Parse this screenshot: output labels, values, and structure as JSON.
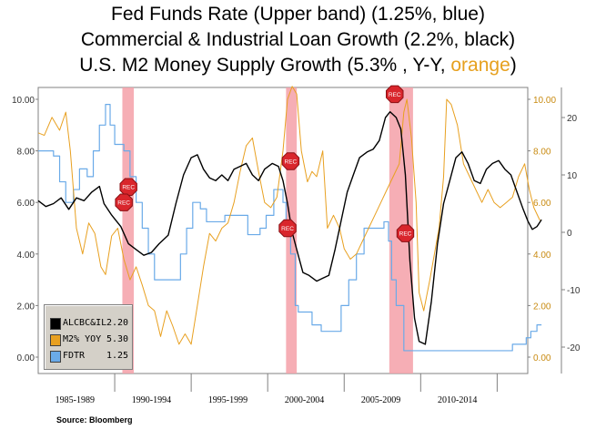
{
  "titles": {
    "line1": "Fed Funds Rate (Upper band) (1.25%, blue)",
    "line2": "Commercial & Industrial Loan Growth (2.2%, black)",
    "line3_prefix": "U.S. M2 Money Supply Growth (5.3% , Y-Y, ",
    "line3_highlight": "orange",
    "line3_suffix": ")"
  },
  "source": "Source:  Bloomberg",
  "colors": {
    "loan": "#000000",
    "m2": "#e8a020",
    "fed": "#6aaae8",
    "recession": "#f4a0a8",
    "axis_right1": "#c88a10"
  },
  "chart_data": {
    "type": "line",
    "x_labels": [
      "1985-1989",
      "1990-1994",
      "1995-1999",
      "2000-2004",
      "2005-2009",
      "2010-2014"
    ],
    "x_range": [
      1985.0,
      2017.0
    ],
    "left_axis": {
      "ticks": [
        "10.00",
        "8.00",
        "6.00",
        "4.00",
        "2.00",
        "0.00"
      ],
      "range": [
        0,
        10.5
      ]
    },
    "right_axis1": {
      "ticks": [
        "10.00",
        "8.00",
        "6.00",
        "4.00",
        "2.00",
        "0.00"
      ],
      "range": [
        0,
        10.5
      ]
    },
    "right_axis2": {
      "ticks": [
        "20",
        "10",
        "0",
        "-10",
        "-20"
      ],
      "range": [
        -22,
        24
      ]
    },
    "recessions": [
      [
        1990.5,
        1991.25
      ],
      [
        2001.2,
        2001.9
      ],
      [
        2007.95,
        2009.5
      ]
    ],
    "rec_markers": [
      {
        "label": "REC",
        "x": 1990.9,
        "y": 6.6
      },
      {
        "label": "REC",
        "x": 1990.6,
        "y": 6.0
      },
      {
        "label": "REC",
        "x": 2001.5,
        "y": 7.6
      },
      {
        "label": "REC",
        "x": 2001.3,
        "y": 5.0
      },
      {
        "label": "REC",
        "x": 2008.3,
        "y": 10.2
      },
      {
        "label": "REC",
        "x": 2009.0,
        "y": 4.8
      }
    ],
    "legend": [
      {
        "name": "ALCBC&IL",
        "value": "2.20",
        "color": "#000000"
      },
      {
        "name": "M2% YOY",
        "value": "5.30",
        "color": "#e8a020"
      },
      {
        "name": "FDTR",
        "value": "1.25",
        "color": "#6aaae8"
      }
    ],
    "series": [
      {
        "name": "FDTR",
        "axis": "left",
        "points": [
          [
            1985.0,
            8.0
          ],
          [
            1985.5,
            8.0
          ],
          [
            1986.0,
            7.8
          ],
          [
            1986.4,
            6.8
          ],
          [
            1986.8,
            6.0
          ],
          [
            1987.3,
            6.5
          ],
          [
            1987.7,
            7.3
          ],
          [
            1988.2,
            7.0
          ],
          [
            1988.6,
            8.0
          ],
          [
            1989.0,
            9.0
          ],
          [
            1989.4,
            9.8
          ],
          [
            1989.7,
            9.0
          ],
          [
            1990.0,
            8.25
          ],
          [
            1990.6,
            8.0
          ],
          [
            1991.0,
            7.0
          ],
          [
            1991.4,
            6.0
          ],
          [
            1991.8,
            5.0
          ],
          [
            1992.2,
            4.0
          ],
          [
            1992.6,
            3.0
          ],
          [
            1993.0,
            3.0
          ],
          [
            1994.0,
            3.0
          ],
          [
            1994.3,
            4.0
          ],
          [
            1994.7,
            5.0
          ],
          [
            1995.1,
            6.0
          ],
          [
            1995.6,
            5.75
          ],
          [
            1996.0,
            5.25
          ],
          [
            1997.2,
            5.5
          ],
          [
            1998.7,
            4.75
          ],
          [
            1999.5,
            5.0
          ],
          [
            1999.9,
            5.5
          ],
          [
            2000.4,
            6.5
          ],
          [
            2001.0,
            6.0
          ],
          [
            2001.2,
            5.0
          ],
          [
            2001.5,
            4.0
          ],
          [
            2001.8,
            2.0
          ],
          [
            2002.0,
            1.75
          ],
          [
            2002.9,
            1.25
          ],
          [
            2003.5,
            1.0
          ],
          [
            2004.5,
            1.0
          ],
          [
            2004.8,
            2.0
          ],
          [
            2005.3,
            3.0
          ],
          [
            2005.8,
            4.0
          ],
          [
            2006.3,
            5.0
          ],
          [
            2007.6,
            5.25
          ],
          [
            2007.9,
            4.5
          ],
          [
            2008.1,
            3.0
          ],
          [
            2008.4,
            2.0
          ],
          [
            2008.9,
            0.25
          ],
          [
            2015.9,
            0.25
          ],
          [
            2016.0,
            0.5
          ],
          [
            2016.9,
            0.75
          ],
          [
            2017.2,
            1.0
          ],
          [
            2017.6,
            1.25
          ],
          [
            2017.9,
            1.25
          ]
        ]
      },
      {
        "name": "ALCBC&IL",
        "axis": "right2",
        "points": [
          [
            1985.0,
            5.5
          ],
          [
            1985.5,
            4.5
          ],
          [
            1986.0,
            5.0
          ],
          [
            1986.5,
            6.0
          ],
          [
            1987.0,
            4.0
          ],
          [
            1987.5,
            6.0
          ],
          [
            1988.0,
            5.5
          ],
          [
            1988.5,
            7.0
          ],
          [
            1989.0,
            8.0
          ],
          [
            1989.3,
            5.0
          ],
          [
            1989.8,
            3.0
          ],
          [
            1990.4,
            1.0
          ],
          [
            1990.9,
            -2.0
          ],
          [
            1991.4,
            -3.0
          ],
          [
            1991.9,
            -4.0
          ],
          [
            1992.4,
            -3.5
          ],
          [
            1992.9,
            -2.0
          ],
          [
            1993.5,
            -0.5
          ],
          [
            1994.0,
            5.0
          ],
          [
            1994.5,
            10.0
          ],
          [
            1995.0,
            13.0
          ],
          [
            1995.4,
            13.5
          ],
          [
            1995.8,
            11.0
          ],
          [
            1996.2,
            9.5
          ],
          [
            1996.6,
            9.0
          ],
          [
            1997.0,
            10.0
          ],
          [
            1997.4,
            9.0
          ],
          [
            1997.8,
            11.0
          ],
          [
            1998.2,
            11.5
          ],
          [
            1998.6,
            12.0
          ],
          [
            1999.0,
            10.0
          ],
          [
            1999.4,
            9.0
          ],
          [
            1999.8,
            11.0
          ],
          [
            2000.3,
            12.0
          ],
          [
            2000.7,
            11.5
          ],
          [
            2001.0,
            9.0
          ],
          [
            2001.3,
            5.0
          ],
          [
            2001.6,
            0.0
          ],
          [
            2001.9,
            -3.0
          ],
          [
            2002.3,
            -7.0
          ],
          [
            2002.7,
            -7.5
          ],
          [
            2003.2,
            -8.5
          ],
          [
            2003.6,
            -8.0
          ],
          [
            2004.0,
            -7.5
          ],
          [
            2004.4,
            -3.0
          ],
          [
            2004.8,
            2.0
          ],
          [
            2005.2,
            7.0
          ],
          [
            2005.6,
            10.0
          ],
          [
            2006.0,
            13.0
          ],
          [
            2006.5,
            14.0
          ],
          [
            2006.9,
            14.5
          ],
          [
            2007.3,
            16.0
          ],
          [
            2007.7,
            20.0
          ],
          [
            2008.0,
            21.0
          ],
          [
            2008.4,
            20.0
          ],
          [
            2008.7,
            18.0
          ],
          [
            2009.0,
            10.0
          ],
          [
            2009.3,
            -5.0
          ],
          [
            2009.6,
            -15.0
          ],
          [
            2009.9,
            -19.0
          ],
          [
            2010.3,
            -19.5
          ],
          [
            2010.7,
            -12.0
          ],
          [
            2011.1,
            -2.0
          ],
          [
            2011.5,
            5.0
          ],
          [
            2011.9,
            9.0
          ],
          [
            2012.3,
            13.0
          ],
          [
            2012.7,
            14.0
          ],
          [
            2013.1,
            12.0
          ],
          [
            2013.5,
            9.0
          ],
          [
            2013.9,
            8.5
          ],
          [
            2014.3,
            11.0
          ],
          [
            2014.7,
            12.0
          ],
          [
            2015.1,
            12.5
          ],
          [
            2015.5,
            11.0
          ],
          [
            2015.9,
            10.0
          ],
          [
            2016.3,
            7.0
          ],
          [
            2016.7,
            4.0
          ],
          [
            2017.0,
            2.0
          ],
          [
            2017.3,
            0.5
          ],
          [
            2017.6,
            1.0
          ],
          [
            2017.9,
            2.2
          ]
        ]
      },
      {
        "name": "M2% YOY",
        "axis": "right1",
        "points": [
          [
            1985.0,
            8.7
          ],
          [
            1985.4,
            8.6
          ],
          [
            1985.9,
            9.3
          ],
          [
            1986.4,
            8.8
          ],
          [
            1986.8,
            9.5
          ],
          [
            1987.1,
            8.0
          ],
          [
            1987.5,
            5.0
          ],
          [
            1987.9,
            4.0
          ],
          [
            1988.3,
            5.2
          ],
          [
            1988.7,
            4.8
          ],
          [
            1989.1,
            3.5
          ],
          [
            1989.4,
            3.2
          ],
          [
            1989.8,
            4.7
          ],
          [
            1990.2,
            5.0
          ],
          [
            1990.6,
            3.8
          ],
          [
            1991.0,
            3.0
          ],
          [
            1991.4,
            3.5
          ],
          [
            1991.8,
            2.8
          ],
          [
            1992.2,
            2.0
          ],
          [
            1992.6,
            1.8
          ],
          [
            1993.0,
            0.8
          ],
          [
            1993.4,
            1.8
          ],
          [
            1993.8,
            1.2
          ],
          [
            1994.2,
            0.5
          ],
          [
            1994.6,
            0.9
          ],
          [
            1995.0,
            0.5
          ],
          [
            1995.4,
            2.0
          ],
          [
            1995.8,
            3.5
          ],
          [
            1996.2,
            4.8
          ],
          [
            1996.6,
            4.5
          ],
          [
            1997.0,
            5.0
          ],
          [
            1997.4,
            5.2
          ],
          [
            1997.8,
            6.0
          ],
          [
            1998.2,
            7.2
          ],
          [
            1998.6,
            8.2
          ],
          [
            1999.0,
            8.5
          ],
          [
            1999.4,
            7.2
          ],
          [
            1999.8,
            6.0
          ],
          [
            2000.2,
            5.8
          ],
          [
            2000.6,
            6.2
          ],
          [
            2001.0,
            8.0
          ],
          [
            2001.3,
            10.0
          ],
          [
            2001.6,
            10.5
          ],
          [
            2001.9,
            10.2
          ],
          [
            2002.2,
            8.0
          ],
          [
            2002.6,
            6.8
          ],
          [
            2002.9,
            7.2
          ],
          [
            2003.2,
            7.0
          ],
          [
            2003.6,
            8.0
          ],
          [
            2003.9,
            5.0
          ],
          [
            2004.3,
            5.5
          ],
          [
            2004.7,
            5.0
          ],
          [
            2005.0,
            4.2
          ],
          [
            2005.4,
            3.8
          ],
          [
            2005.8,
            4.0
          ],
          [
            2006.2,
            4.5
          ],
          [
            2006.6,
            5.0
          ],
          [
            2007.0,
            5.5
          ],
          [
            2007.4,
            6.0
          ],
          [
            2007.8,
            6.5
          ],
          [
            2008.2,
            7.0
          ],
          [
            2008.6,
            7.5
          ],
          [
            2008.9,
            9.5
          ],
          [
            2009.1,
            10.0
          ],
          [
            2009.4,
            8.5
          ],
          [
            2009.7,
            6.0
          ],
          [
            2009.9,
            2.5
          ],
          [
            2010.2,
            1.8
          ],
          [
            2010.6,
            3.0
          ],
          [
            2010.9,
            4.0
          ],
          [
            2011.2,
            5.0
          ],
          [
            2011.5,
            7.0
          ],
          [
            2011.7,
            10.0
          ],
          [
            2012.0,
            9.8
          ],
          [
            2012.4,
            9.0
          ],
          [
            2012.8,
            7.5
          ],
          [
            2013.2,
            7.0
          ],
          [
            2013.6,
            6.5
          ],
          [
            2014.0,
            6.0
          ],
          [
            2014.4,
            6.5
          ],
          [
            2014.8,
            6.0
          ],
          [
            2015.2,
            5.8
          ],
          [
            2015.6,
            6.0
          ],
          [
            2016.0,
            6.2
          ],
          [
            2016.4,
            7.0
          ],
          [
            2016.8,
            7.5
          ],
          [
            2017.1,
            6.5
          ],
          [
            2017.4,
            5.8
          ],
          [
            2017.8,
            5.3
          ]
        ]
      }
    ]
  }
}
